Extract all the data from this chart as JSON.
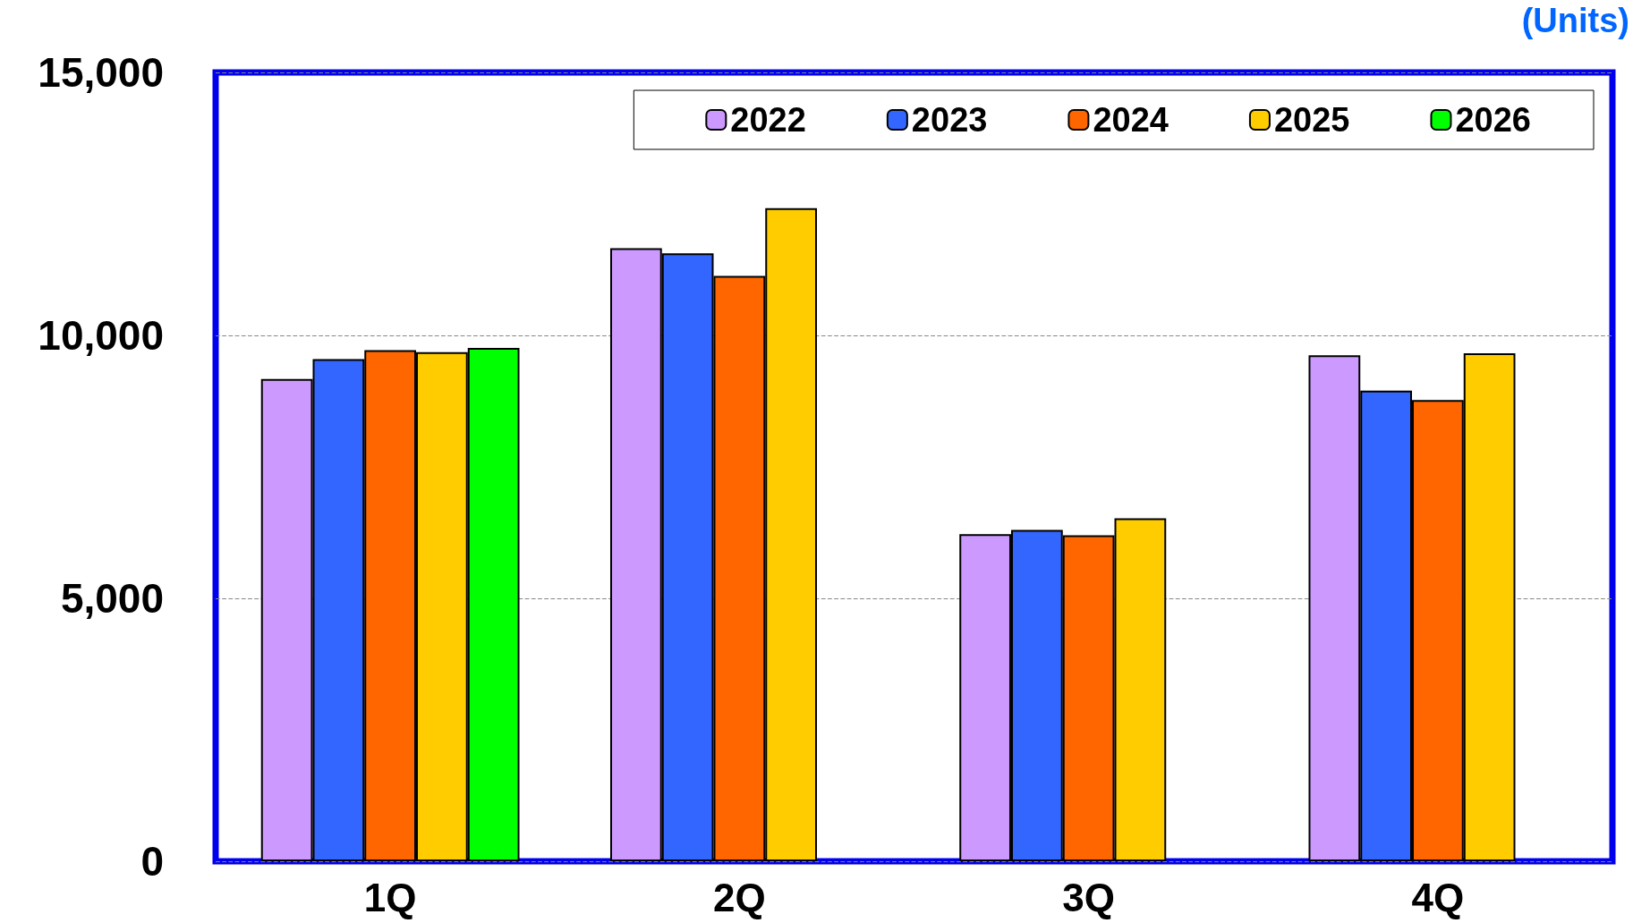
{
  "chart_data": {
    "type": "bar",
    "annotations": [
      "(Units)"
    ],
    "categories": [
      "1Q",
      "2Q",
      "3Q",
      "4Q"
    ],
    "series": [
      {
        "name": "2022",
        "color": "#cc99ff",
        "values": [
          9170,
          11660,
          6220,
          9620
        ]
      },
      {
        "name": "2023",
        "color": "#3366ff",
        "values": [
          9550,
          11560,
          6300,
          8950
        ]
      },
      {
        "name": "2024",
        "color": "#ff6600",
        "values": [
          9720,
          11130,
          6200,
          8770
        ]
      },
      {
        "name": "2025",
        "color": "#ffcc00",
        "values": [
          9680,
          12420,
          6520,
          9660
        ]
      },
      {
        "name": "2026",
        "color": "#00ff00",
        "values": [
          9760,
          null,
          null,
          null
        ]
      }
    ],
    "ylim": [
      0,
      15000
    ],
    "yticks": [
      0,
      {
        "value": 5000,
        "label": "5,000"
      },
      {
        "value": 10000,
        "label": "10,000"
      },
      {
        "value": 15000,
        "label": "15,000"
      }
    ],
    "grid": "y",
    "legend": "top right"
  }
}
